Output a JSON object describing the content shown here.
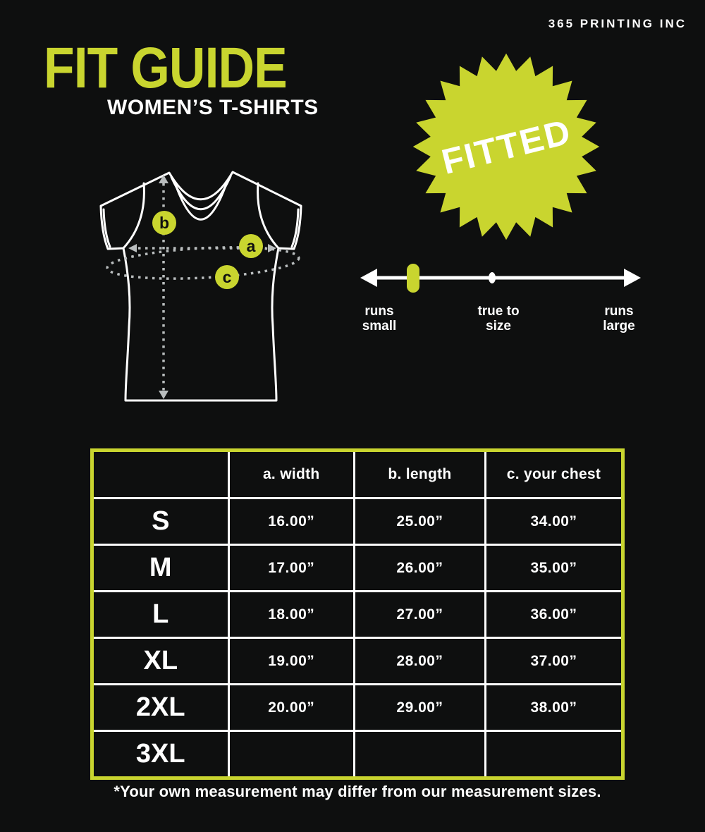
{
  "brand": "365 PRINTING INC",
  "header": {
    "title": "FIT GUIDE",
    "subtitle": "WOMEN’S T-SHIRTS"
  },
  "badge": {
    "label": "FITTED"
  },
  "fit_scale": {
    "left_label": {
      "line1": "runs",
      "line2": "small"
    },
    "center_label": {
      "line1": "true to",
      "line2": "size"
    },
    "right_label": {
      "line1": "runs",
      "line2": "large"
    },
    "marker_position": "runs small"
  },
  "diagram": {
    "marker_a": "a",
    "marker_b": "b",
    "marker_c": "c"
  },
  "size_chart": {
    "columns": [
      "a. width",
      "b. length",
      "c. your chest"
    ],
    "rows": [
      {
        "size": "S",
        "width": "16.00”",
        "length": "25.00”",
        "chest": "34.00”"
      },
      {
        "size": "M",
        "width": "17.00”",
        "length": "26.00”",
        "chest": "35.00”"
      },
      {
        "size": "L",
        "width": "18.00”",
        "length": "27.00”",
        "chest": "36.00”"
      },
      {
        "size": "XL",
        "width": "19.00”",
        "length": "28.00”",
        "chest": "37.00”"
      },
      {
        "size": "2XL",
        "width": "20.00”",
        "length": "29.00”",
        "chest": "38.00”"
      },
      {
        "size": "3XL",
        "width": "",
        "length": "",
        "chest": ""
      }
    ]
  },
  "footnote": "*Your own measurement may differ from our measurement sizes.",
  "colors": {
    "background": "#0e0f0f",
    "accent_green": "#c9d52f",
    "text_white": "#ffffff",
    "table_border": "#c9d52f",
    "dotted_lines": "#b9bdbe"
  }
}
